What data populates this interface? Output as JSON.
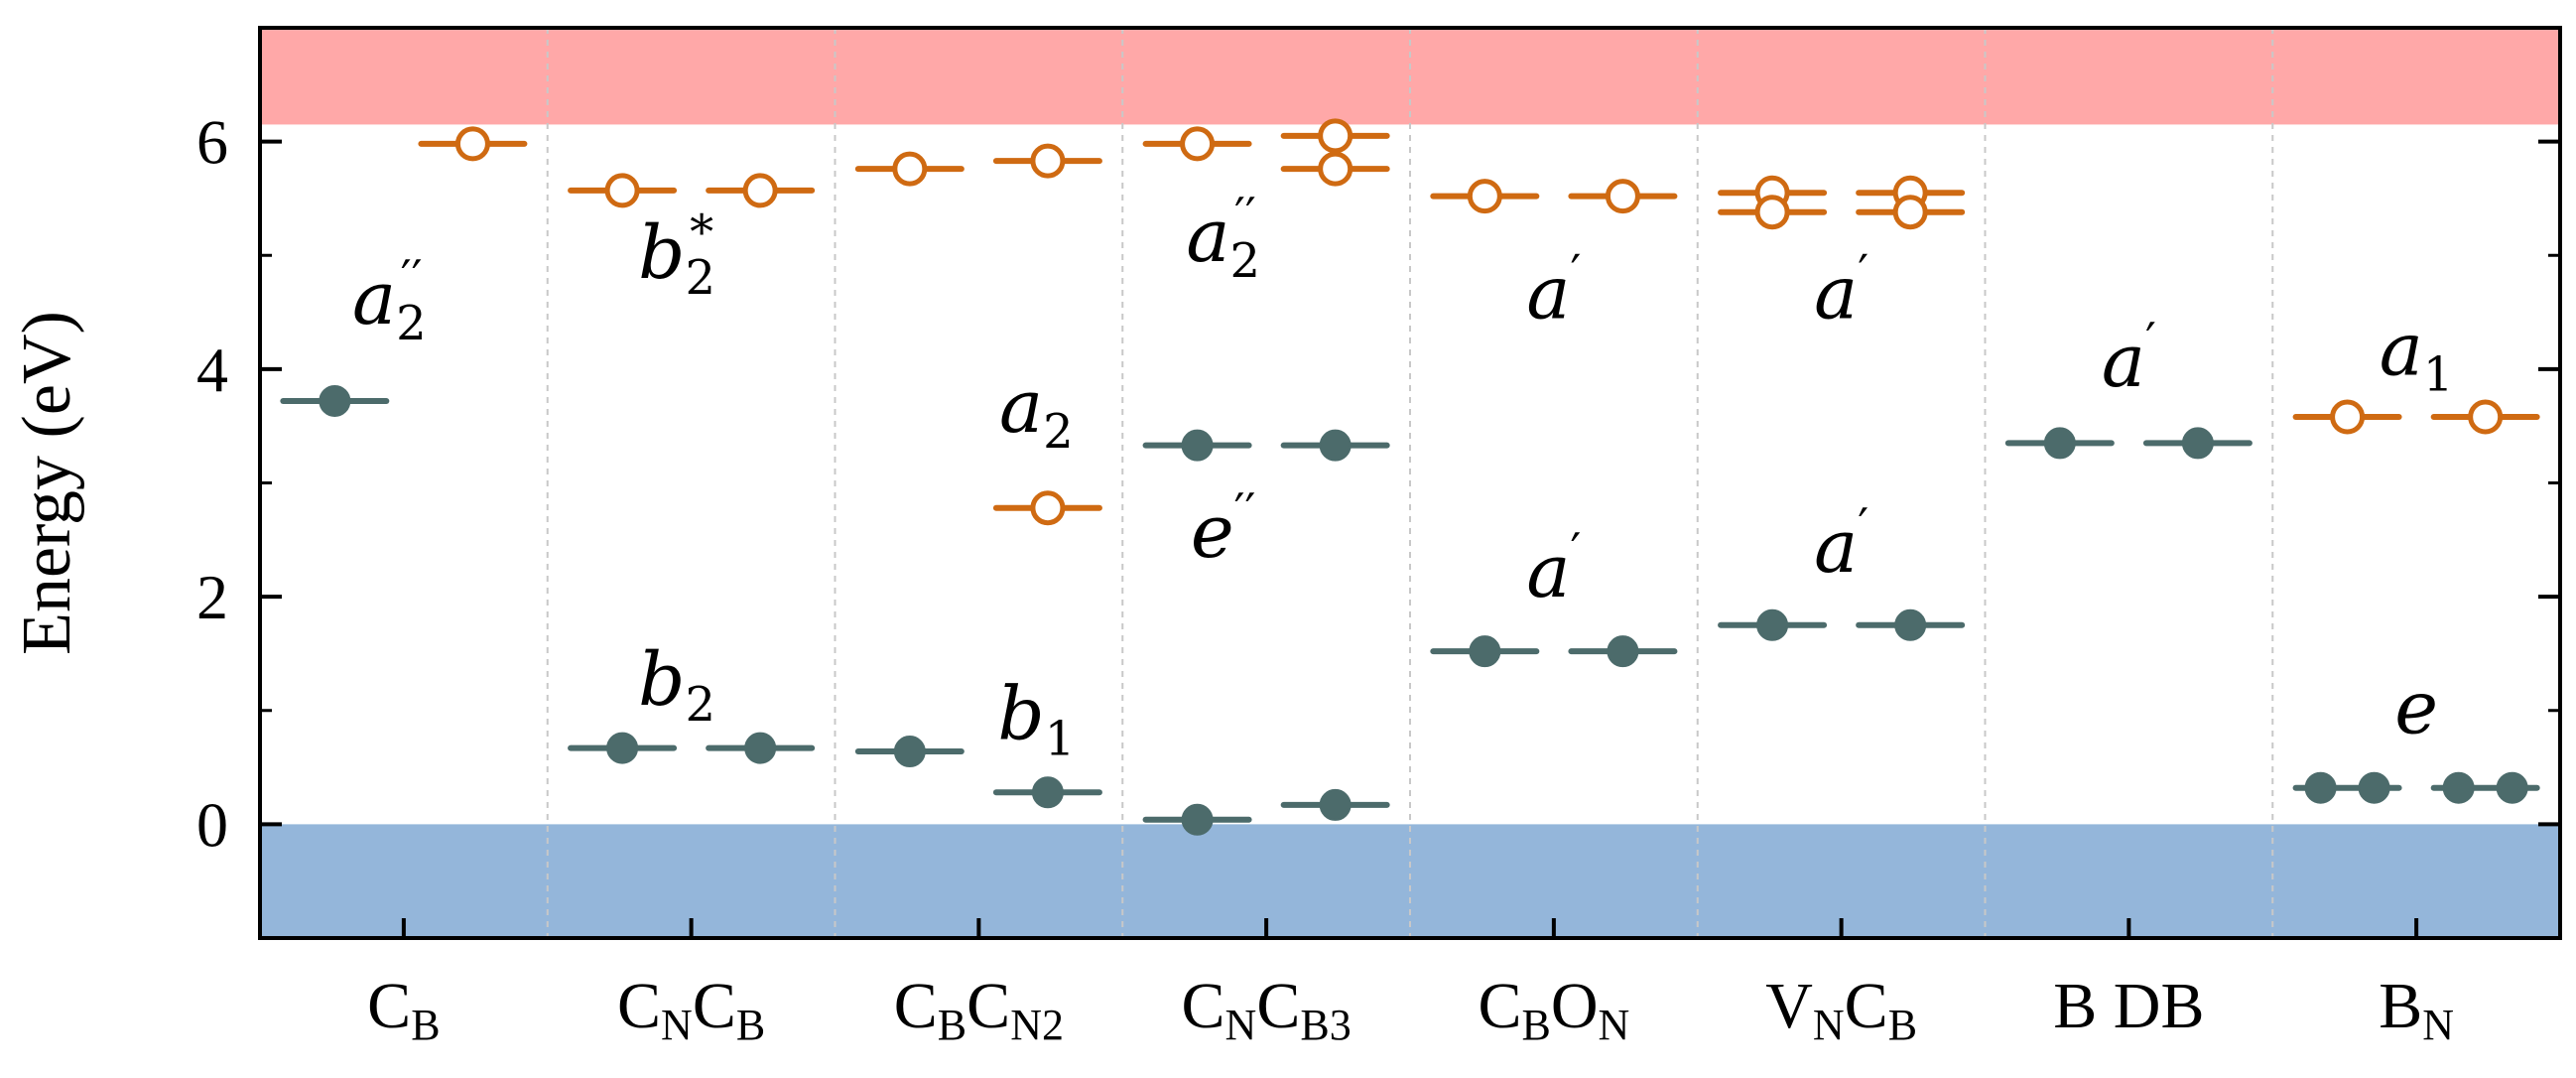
{
  "chart_data": {
    "type": "scatter",
    "title": "",
    "xlabel": "",
    "ylabel": "Energy (eV)",
    "ylim": [
      -1,
      7
    ],
    "yticks": [
      0,
      2,
      4,
      6
    ],
    "yticks_labels": [
      "0",
      "2",
      "4",
      "6"
    ],
    "grid": "vertical dashed separators between defects",
    "bands": [
      {
        "name": "Valence band",
        "from": -1,
        "to": 0,
        "color": "#94b6da"
      },
      {
        "name": "Conduction band",
        "from": 6.15,
        "to": 7,
        "color": "#ffa8a8"
      }
    ],
    "colors": {
      "occupied": "#4c6b6b",
      "unoccupied": "#cf6a12"
    },
    "categories": [
      {
        "main": "C",
        "sub": "B",
        "main2": "",
        "sub2": ""
      },
      {
        "main": "C",
        "sub": "N",
        "main2": "C",
        "sub2": "B"
      },
      {
        "main": "C",
        "sub": "B",
        "main2": "C",
        "sub2": "N2"
      },
      {
        "main": "C",
        "sub": "N",
        "main2": "C",
        "sub2": "B3"
      },
      {
        "main": "C",
        "sub": "B",
        "main2": "O",
        "sub2": "N"
      },
      {
        "main": "V",
        "sub": "N",
        "main2": "C",
        "sub2": "B"
      },
      {
        "main": "B DB",
        "sub": "",
        "main2": "",
        "sub2": ""
      },
      {
        "main": "B",
        "sub": "N",
        "main2": "",
        "sub2": ""
      }
    ],
    "series": [
      {
        "name": "occupied",
        "points": [
          {
            "defect": 0,
            "channel": "up",
            "energy": 3.72
          },
          {
            "defect": 1,
            "channel": "up",
            "energy": 0.67
          },
          {
            "defect": 1,
            "channel": "down",
            "energy": 0.67
          },
          {
            "defect": 2,
            "channel": "up",
            "energy": 0.64
          },
          {
            "defect": 2,
            "channel": "down",
            "energy": 0.28
          },
          {
            "defect": 3,
            "channel": "up",
            "energy": 0.04
          },
          {
            "defect": 3,
            "channel": "down",
            "energy": 0.17
          },
          {
            "defect": 3,
            "channel": "up",
            "energy": 3.33
          },
          {
            "defect": 3,
            "channel": "down",
            "energy": 3.33
          },
          {
            "defect": 4,
            "channel": "up",
            "energy": 1.52
          },
          {
            "defect": 4,
            "channel": "down",
            "energy": 1.52
          },
          {
            "defect": 5,
            "channel": "up",
            "energy": 1.75
          },
          {
            "defect": 5,
            "channel": "down",
            "energy": 1.75
          },
          {
            "defect": 6,
            "channel": "up",
            "energy": 3.35
          },
          {
            "defect": 6,
            "channel": "down",
            "energy": 3.35
          },
          {
            "defect": 7,
            "channel": "up",
            "energy": 0.32,
            "double": true
          },
          {
            "defect": 7,
            "channel": "down",
            "energy": 0.32,
            "double": true
          }
        ]
      },
      {
        "name": "unoccupied",
        "points": [
          {
            "defect": 0,
            "channel": "down",
            "energy": 5.98
          },
          {
            "defect": 1,
            "channel": "up",
            "energy": 5.57
          },
          {
            "defect": 1,
            "channel": "down",
            "energy": 5.57
          },
          {
            "defect": 2,
            "channel": "up",
            "energy": 5.76
          },
          {
            "defect": 2,
            "channel": "down",
            "energy": 5.83
          },
          {
            "defect": 2,
            "channel": "down",
            "energy": 2.78
          },
          {
            "defect": 3,
            "channel": "up",
            "energy": 5.98
          },
          {
            "defect": 3,
            "channel": "down",
            "energy": 6.05
          },
          {
            "defect": 3,
            "channel": "down",
            "energy": 5.76
          },
          {
            "defect": 4,
            "channel": "up",
            "energy": 5.52
          },
          {
            "defect": 4,
            "channel": "down",
            "energy": 5.52
          },
          {
            "defect": 5,
            "channel": "up",
            "energy": 5.55
          },
          {
            "defect": 5,
            "channel": "up",
            "energy": 5.38
          },
          {
            "defect": 5,
            "channel": "down",
            "energy": 5.55
          },
          {
            "defect": 5,
            "channel": "down",
            "energy": 5.38
          },
          {
            "defect": 7,
            "channel": "up",
            "energy": 3.58
          },
          {
            "defect": 7,
            "channel": "down",
            "energy": 3.58
          }
        ]
      }
    ],
    "annotations": [
      {
        "base": "a",
        "sub": "2",
        "sup": "′′",
        "defect": 0,
        "energy": 4.4,
        "offset": -0.05
      },
      {
        "base": "b",
        "sub": "2",
        "sup": "*",
        "defect": 1,
        "energy": 4.8,
        "offset": -0.05
      },
      {
        "base": "b",
        "sub": "2",
        "sup": "",
        "defect": 1,
        "energy": 1.05,
        "offset": -0.05
      },
      {
        "base": "a",
        "sub": "2",
        "sup": "",
        "defect": 2,
        "energy": 3.45,
        "offset": 0.2
      },
      {
        "base": "b",
        "sub": "1",
        "sup": "",
        "defect": 2,
        "energy": 0.75,
        "offset": 0.2
      },
      {
        "base": "a",
        "sub": "2",
        "sup": "′′",
        "defect": 3,
        "energy": 4.95,
        "offset": -0.15
      },
      {
        "base": "e",
        "sub": "",
        "sup": "′′",
        "defect": 3,
        "energy": 2.35,
        "offset": -0.15
      },
      {
        "base": "a",
        "sub": "",
        "sup": "′",
        "defect": 4,
        "energy": 4.45,
        "offset": 0
      },
      {
        "base": "a",
        "sub": "",
        "sup": "′",
        "defect": 4,
        "energy": 2.0,
        "offset": 0
      },
      {
        "base": "a",
        "sub": "",
        "sup": "′",
        "defect": 5,
        "energy": 4.45,
        "offset": 0
      },
      {
        "base": "a",
        "sub": "",
        "sup": "′",
        "defect": 5,
        "energy": 2.22,
        "offset": 0
      },
      {
        "base": "a",
        "sub": "",
        "sup": "′",
        "defect": 6,
        "energy": 3.85,
        "offset": 0
      },
      {
        "base": "a",
        "sub": "1",
        "sup": "",
        "defect": 7,
        "energy": 3.95,
        "offset": 0
      },
      {
        "base": "e",
        "sub": "",
        "sup": "",
        "defect": 7,
        "energy": 0.8,
        "offset": 0
      }
    ]
  }
}
